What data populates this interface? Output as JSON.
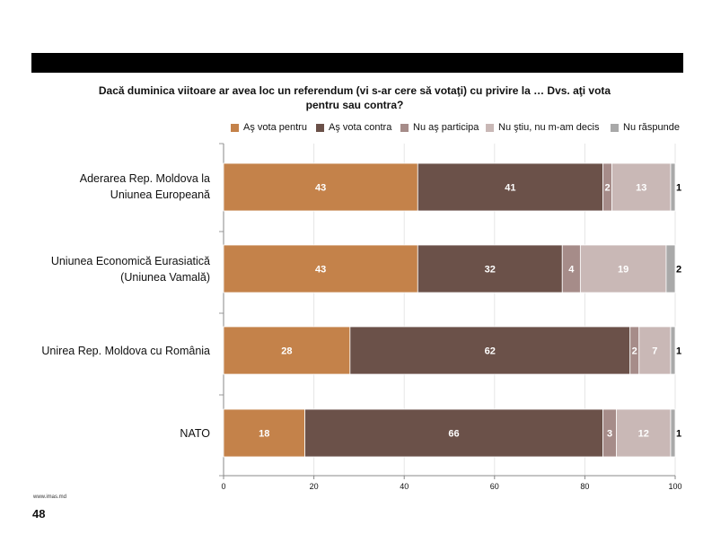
{
  "header": {
    "bar_color": "#000000"
  },
  "footer": {
    "url": "www.imas.md",
    "page_number": "48"
  },
  "chart_data": {
    "type": "bar",
    "orientation": "horizontal",
    "stacked": true,
    "title_lines": [
      "Dacă duminica viitoare ar avea loc un referendum (vi s-ar cere să votaţi) cu privire la … Dvs. aţi vota",
      "pentru sau contra?"
    ],
    "categories": [
      [
        "Aderarea Rep. Moldova la",
        "Uniunea Europeană"
      ],
      [
        "Uniunea Economică Eurasiatică",
        "(Uniunea Vamală)"
      ],
      [
        "Unirea Rep. Moldova cu România"
      ],
      [
        "NATO"
      ]
    ],
    "series": [
      {
        "name": "Aş vota pentru",
        "color": "#C4824A",
        "values": [
          43,
          43,
          28,
          18
        ]
      },
      {
        "name": "Aş vota contra",
        "color": "#6B5149",
        "values": [
          41,
          32,
          62,
          66
        ]
      },
      {
        "name": "Nu aş participa",
        "color": "#A68C89",
        "values": [
          2,
          4,
          2,
          3
        ]
      },
      {
        "name": "Nu ştiu, nu m-am decis",
        "color": "#C9B8B6",
        "values": [
          13,
          19,
          7,
          12
        ]
      },
      {
        "name": "Nu răspunde",
        "color": "#A9A9A9",
        "values": [
          1,
          2,
          1,
          1
        ]
      }
    ],
    "x_ticks": [
      0,
      20,
      40,
      60,
      80,
      100
    ],
    "xlim": [
      0,
      100
    ],
    "grid": true,
    "legend_position": "top"
  }
}
